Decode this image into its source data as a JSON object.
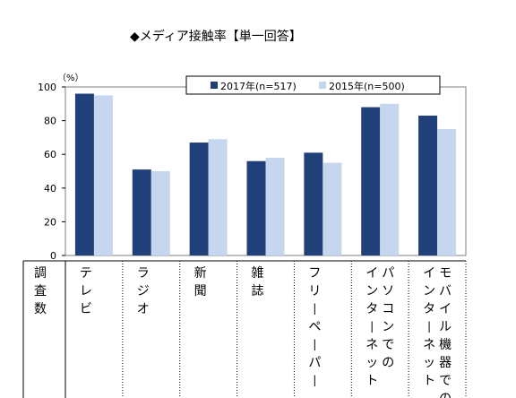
{
  "title": "◆メディア接触率【単一回答】",
  "chart_data": {
    "type": "bar",
    "unit_label": "（%）",
    "ylim": [
      0,
      100
    ],
    "yticks": [
      0,
      20,
      40,
      60,
      80,
      100
    ],
    "row_header": "調査数",
    "categories": [
      "テレビ",
      "ラジオ",
      "新聞",
      "雑誌",
      "フリーペーパー",
      "パソコンでのインターネット",
      "モバイル機器でのインターネット"
    ],
    "category_lines": [
      [
        "テレビ"
      ],
      [
        "ラジオ"
      ],
      [
        "新聞"
      ],
      [
        "雑誌"
      ],
      [
        "フリーペーパー"
      ],
      [
        "パソコンでの",
        "インターネット"
      ],
      [
        "モバイル機器での",
        "インターネット"
      ]
    ],
    "series": [
      {
        "name": "2017年(n=517)",
        "color": "#1f4078",
        "values": [
          96,
          51,
          67,
          56,
          61,
          88,
          83
        ]
      },
      {
        "name": "2015年(n=500)",
        "color": "#c5d6ee",
        "values": [
          95,
          50,
          69,
          58,
          55,
          90,
          75
        ]
      }
    ],
    "legend_position": "top-right",
    "grid": false
  }
}
